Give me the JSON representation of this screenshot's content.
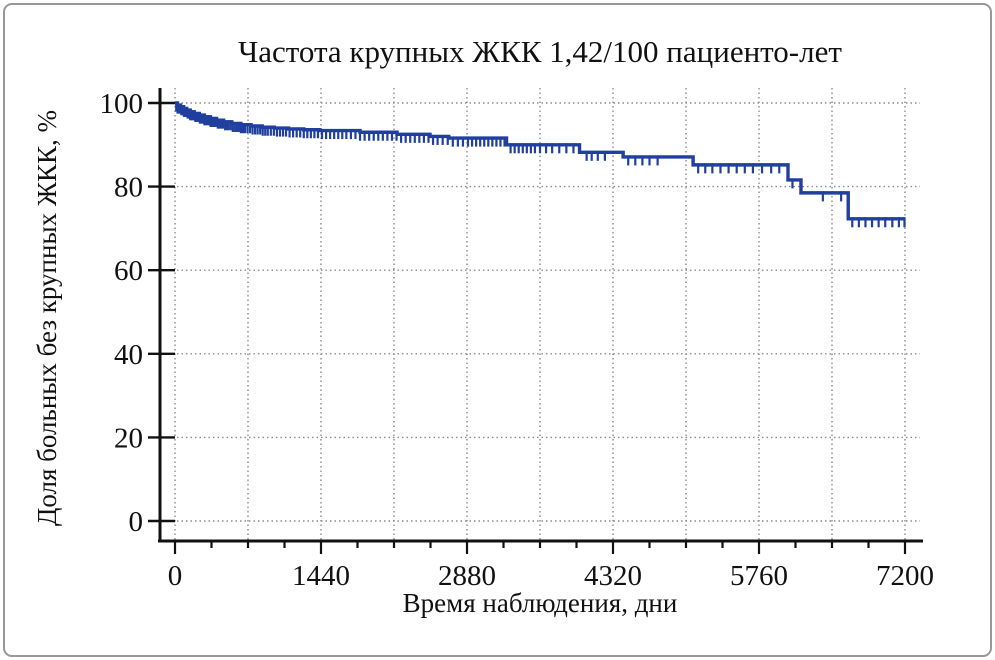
{
  "window": {
    "background": "#ffffff",
    "border_color": "#989898"
  },
  "chart_data": {
    "type": "line",
    "variant": "kaplan_meier_step_curve",
    "title": "Частота крупных ЖКК 1,42/100 пациенто-лет",
    "xlabel": "Время наблюдения, дни",
    "ylabel": "Доля больных без крупных ЖКК, %",
    "xlim": [
      0,
      7200
    ],
    "ylim": [
      0,
      100
    ],
    "x_major_ticks": [
      0,
      1440,
      2880,
      4320,
      5760,
      7200
    ],
    "x_minor_tick_interval": 360,
    "y_ticks": [
      100,
      80,
      60,
      40,
      20,
      0
    ],
    "grid": {
      "style": "dotted",
      "color": "#8c8c8c",
      "vertical_interval_days": 720,
      "horizontal_interval_pct": 20
    },
    "legend_position": "none",
    "axis_color": "#111111",
    "series": [
      {
        "name": "Доля больных без крупных ЖКК",
        "color": "#203f9e",
        "steps": [
          [
            0,
            100
          ],
          [
            25,
            99.5
          ],
          [
            55,
            99.1
          ],
          [
            85,
            98.7
          ],
          [
            115,
            98.3
          ],
          [
            150,
            97.9
          ],
          [
            190,
            97.5
          ],
          [
            240,
            97.1
          ],
          [
            290,
            96.7
          ],
          [
            350,
            96.3
          ],
          [
            410,
            95.9
          ],
          [
            480,
            95.5
          ],
          [
            560,
            95.1
          ],
          [
            650,
            94.8
          ],
          [
            750,
            94.5
          ],
          [
            860,
            94.2
          ],
          [
            980,
            94.0
          ],
          [
            1120,
            93.8
          ],
          [
            1270,
            93.6
          ],
          [
            1430,
            93.4
          ],
          [
            1825,
            93.0
          ],
          [
            2190,
            92.5
          ],
          [
            2515,
            92.0
          ],
          [
            2700,
            91.6
          ],
          [
            3270,
            90.0
          ],
          [
            3990,
            88.2
          ],
          [
            4420,
            87.1
          ],
          [
            5110,
            85.2
          ],
          [
            6046,
            81.6
          ],
          [
            6174,
            78.5
          ],
          [
            6640,
            72.3
          ],
          [
            7200,
            72.3
          ]
        ],
        "censor_times": [
          12,
          25,
          38,
          50,
          62,
          75,
          88,
          100,
          112,
          125,
          138,
          150,
          162,
          175,
          188,
          200,
          215,
          230,
          245,
          260,
          275,
          290,
          305,
          320,
          335,
          350,
          368,
          386,
          404,
          422,
          440,
          458,
          476,
          494,
          512,
          530,
          550,
          570,
          590,
          610,
          630,
          650,
          670,
          690,
          715,
          740,
          765,
          790,
          815,
          840,
          865,
          890,
          915,
          945,
          975,
          1005,
          1035,
          1065,
          1095,
          1130,
          1165,
          1200,
          1235,
          1270,
          1305,
          1340,
          1375,
          1410,
          1450,
          1490,
          1530,
          1570,
          1610,
          1650,
          1690,
          1735,
          1780,
          1825,
          1870,
          1915,
          1960,
          2005,
          2050,
          2095,
          2140,
          2185,
          2230,
          2275,
          2320,
          2365,
          2410,
          2455,
          2500,
          2545,
          2590,
          2640,
          2690,
          2740,
          2790,
          2840,
          2890,
          2930,
          2970,
          3010,
          3050,
          3090,
          3130,
          3170,
          3210,
          3250,
          3310,
          3350,
          3390,
          3430,
          3470,
          3510,
          3550,
          3600,
          3660,
          3720,
          3790,
          3860,
          3930,
          4060,
          4110,
          4170,
          4240,
          4470,
          4540,
          4610,
          4680,
          4760,
          5160,
          5230,
          5300,
          5380,
          5460,
          5540,
          5620,
          5700,
          5790,
          5880,
          5960,
          6090,
          6390,
          6570,
          6680,
          6745,
          6810,
          6875,
          6940,
          7005,
          7075,
          7140,
          7195
        ]
      }
    ]
  }
}
